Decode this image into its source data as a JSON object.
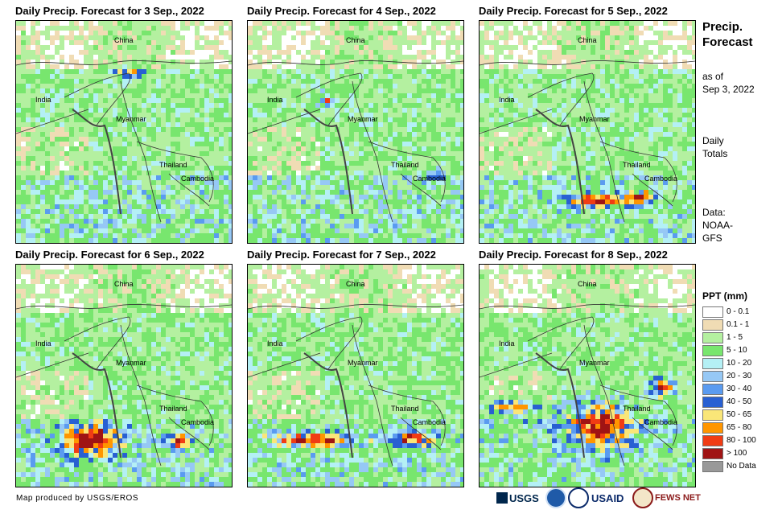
{
  "panels": [
    {
      "title": "Daily Precip. Forecast for 3 Sep., 2022",
      "day": 3
    },
    {
      "title": "Daily Precip. Forecast for 4 Sep., 2022",
      "day": 4
    },
    {
      "title": "Daily Precip. Forecast for 5 Sep., 2022",
      "day": 5
    },
    {
      "title": "Daily Precip. Forecast for 6 Sep., 2022",
      "day": 6
    },
    {
      "title": "Daily Precip. Forecast for 7 Sep., 2022",
      "day": 7
    },
    {
      "title": "Daily Precip. Forecast for 8 Sep., 2022",
      "day": 8
    }
  ],
  "places": {
    "china": "China",
    "india": "India",
    "myanmar": "Myanmar",
    "thailand": "Thailand",
    "cambodia": "Cambodia"
  },
  "sidebar": {
    "title_line1": "Precip.",
    "title_line2": "Forecast",
    "asof_line1": "as of",
    "asof_line2": "Sep 3, 2022",
    "daily_line1": "Daily",
    "daily_line2": "Totals",
    "data_line1": "Data:",
    "data_line2": "NOAA-",
    "data_line3": "GFS"
  },
  "legend": {
    "title": "PPT (mm)",
    "items": [
      {
        "label": "0 - 0.1",
        "color": "#ffffff"
      },
      {
        "label": "0.1 - 1",
        "color": "#f0dcb4"
      },
      {
        "label": "1 - 5",
        "color": "#b4f0a0"
      },
      {
        "label": "5 - 10",
        "color": "#78e66e"
      },
      {
        "label": "10 - 20",
        "color": "#b4f0f5"
      },
      {
        "label": "20 - 30",
        "color": "#96c8f5"
      },
      {
        "label": "30 - 40",
        "color": "#5a9bf0"
      },
      {
        "label": "40 - 50",
        "color": "#2860d2"
      },
      {
        "label": "50 - 65",
        "color": "#fae678"
      },
      {
        "label": "65 - 80",
        "color": "#ff9600"
      },
      {
        "label": "80 - 100",
        "color": "#f03c14"
      },
      {
        "label": "> 100",
        "color": "#a01414"
      },
      {
        "label": "No Data",
        "color": "#999999"
      }
    ]
  },
  "footer": {
    "credit": "Map produced by USGS/EROS",
    "usgs": "USGS",
    "usaid": "USAID",
    "fewsnet": "FEWS NET"
  }
}
